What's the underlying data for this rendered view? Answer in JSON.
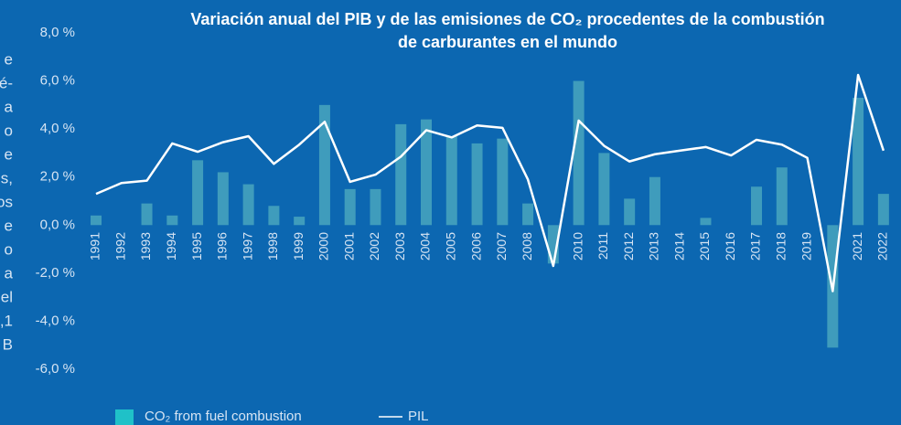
{
  "chart_data": {
    "type": "bar",
    "title": [
      "Variación anual del PIB y de las emisiones de CO₂ procedentes de la combustión",
      "de carburantes en el mundo"
    ],
    "side_text": [
      "e",
      "é-",
      "a",
      "o",
      "e",
      "s,",
      "os",
      "e",
      "o",
      "a",
      "el",
      ",1",
      "B"
    ],
    "categories": [
      "1991",
      "1992",
      "1993",
      "1994",
      "1995",
      "1996",
      "1997",
      "1998",
      "1999",
      "2000",
      "2001",
      "2002",
      "2003",
      "2004",
      "2005",
      "2006",
      "2007",
      "2008",
      "2009",
      "2010",
      "2011",
      "2012",
      "2013",
      "2014",
      "2015",
      "2016",
      "2017",
      "2018",
      "2019",
      "2020",
      "2021",
      "2022"
    ],
    "series": [
      {
        "name": "CO₂ from fuel combustion",
        "type": "bar",
        "color": "#3f9cbc",
        "values": [
          0.4,
          0,
          0.9,
          0.4,
          2.7,
          2.2,
          1.7,
          0.8,
          0.35,
          5.0,
          1.5,
          1.5,
          4.2,
          4.4,
          3.7,
          3.4,
          3.6,
          0.9,
          -1.6,
          6.0,
          3.0,
          1.1,
          2.0,
          0,
          0.3,
          0,
          1.6,
          2.4,
          0,
          -5.1,
          5.3,
          1.3
        ]
      },
      {
        "name": "PIL",
        "type": "line",
        "color": "#ffffff",
        "values": [
          1.3,
          1.75,
          1.85,
          3.4,
          3.05,
          3.45,
          3.7,
          2.55,
          3.35,
          4.3,
          1.8,
          2.1,
          2.85,
          3.95,
          3.65,
          4.15,
          4.05,
          1.9,
          -1.7,
          4.35,
          3.3,
          2.65,
          2.95,
          3.1,
          3.25,
          2.9,
          3.55,
          3.35,
          2.8,
          -2.75,
          6.25,
          3.1
        ]
      }
    ],
    "ylim": [
      -6,
      8
    ],
    "yticks": [
      {
        "value": -6,
        "label": "-6,0 %"
      },
      {
        "value": -4,
        "label": "-4,0 %"
      },
      {
        "value": -2,
        "label": "-2,0 %"
      },
      {
        "value": 0,
        "label": "0,0 %"
      },
      {
        "value": 2,
        "label": "2,0 %"
      },
      {
        "value": 4,
        "label": "4,0 %"
      },
      {
        "value": 6,
        "label": "6,0 %"
      },
      {
        "value": 8,
        "label": "8,0 %"
      }
    ],
    "legend": "bottom",
    "legend_swatch_color": "#1fc1c8"
  }
}
